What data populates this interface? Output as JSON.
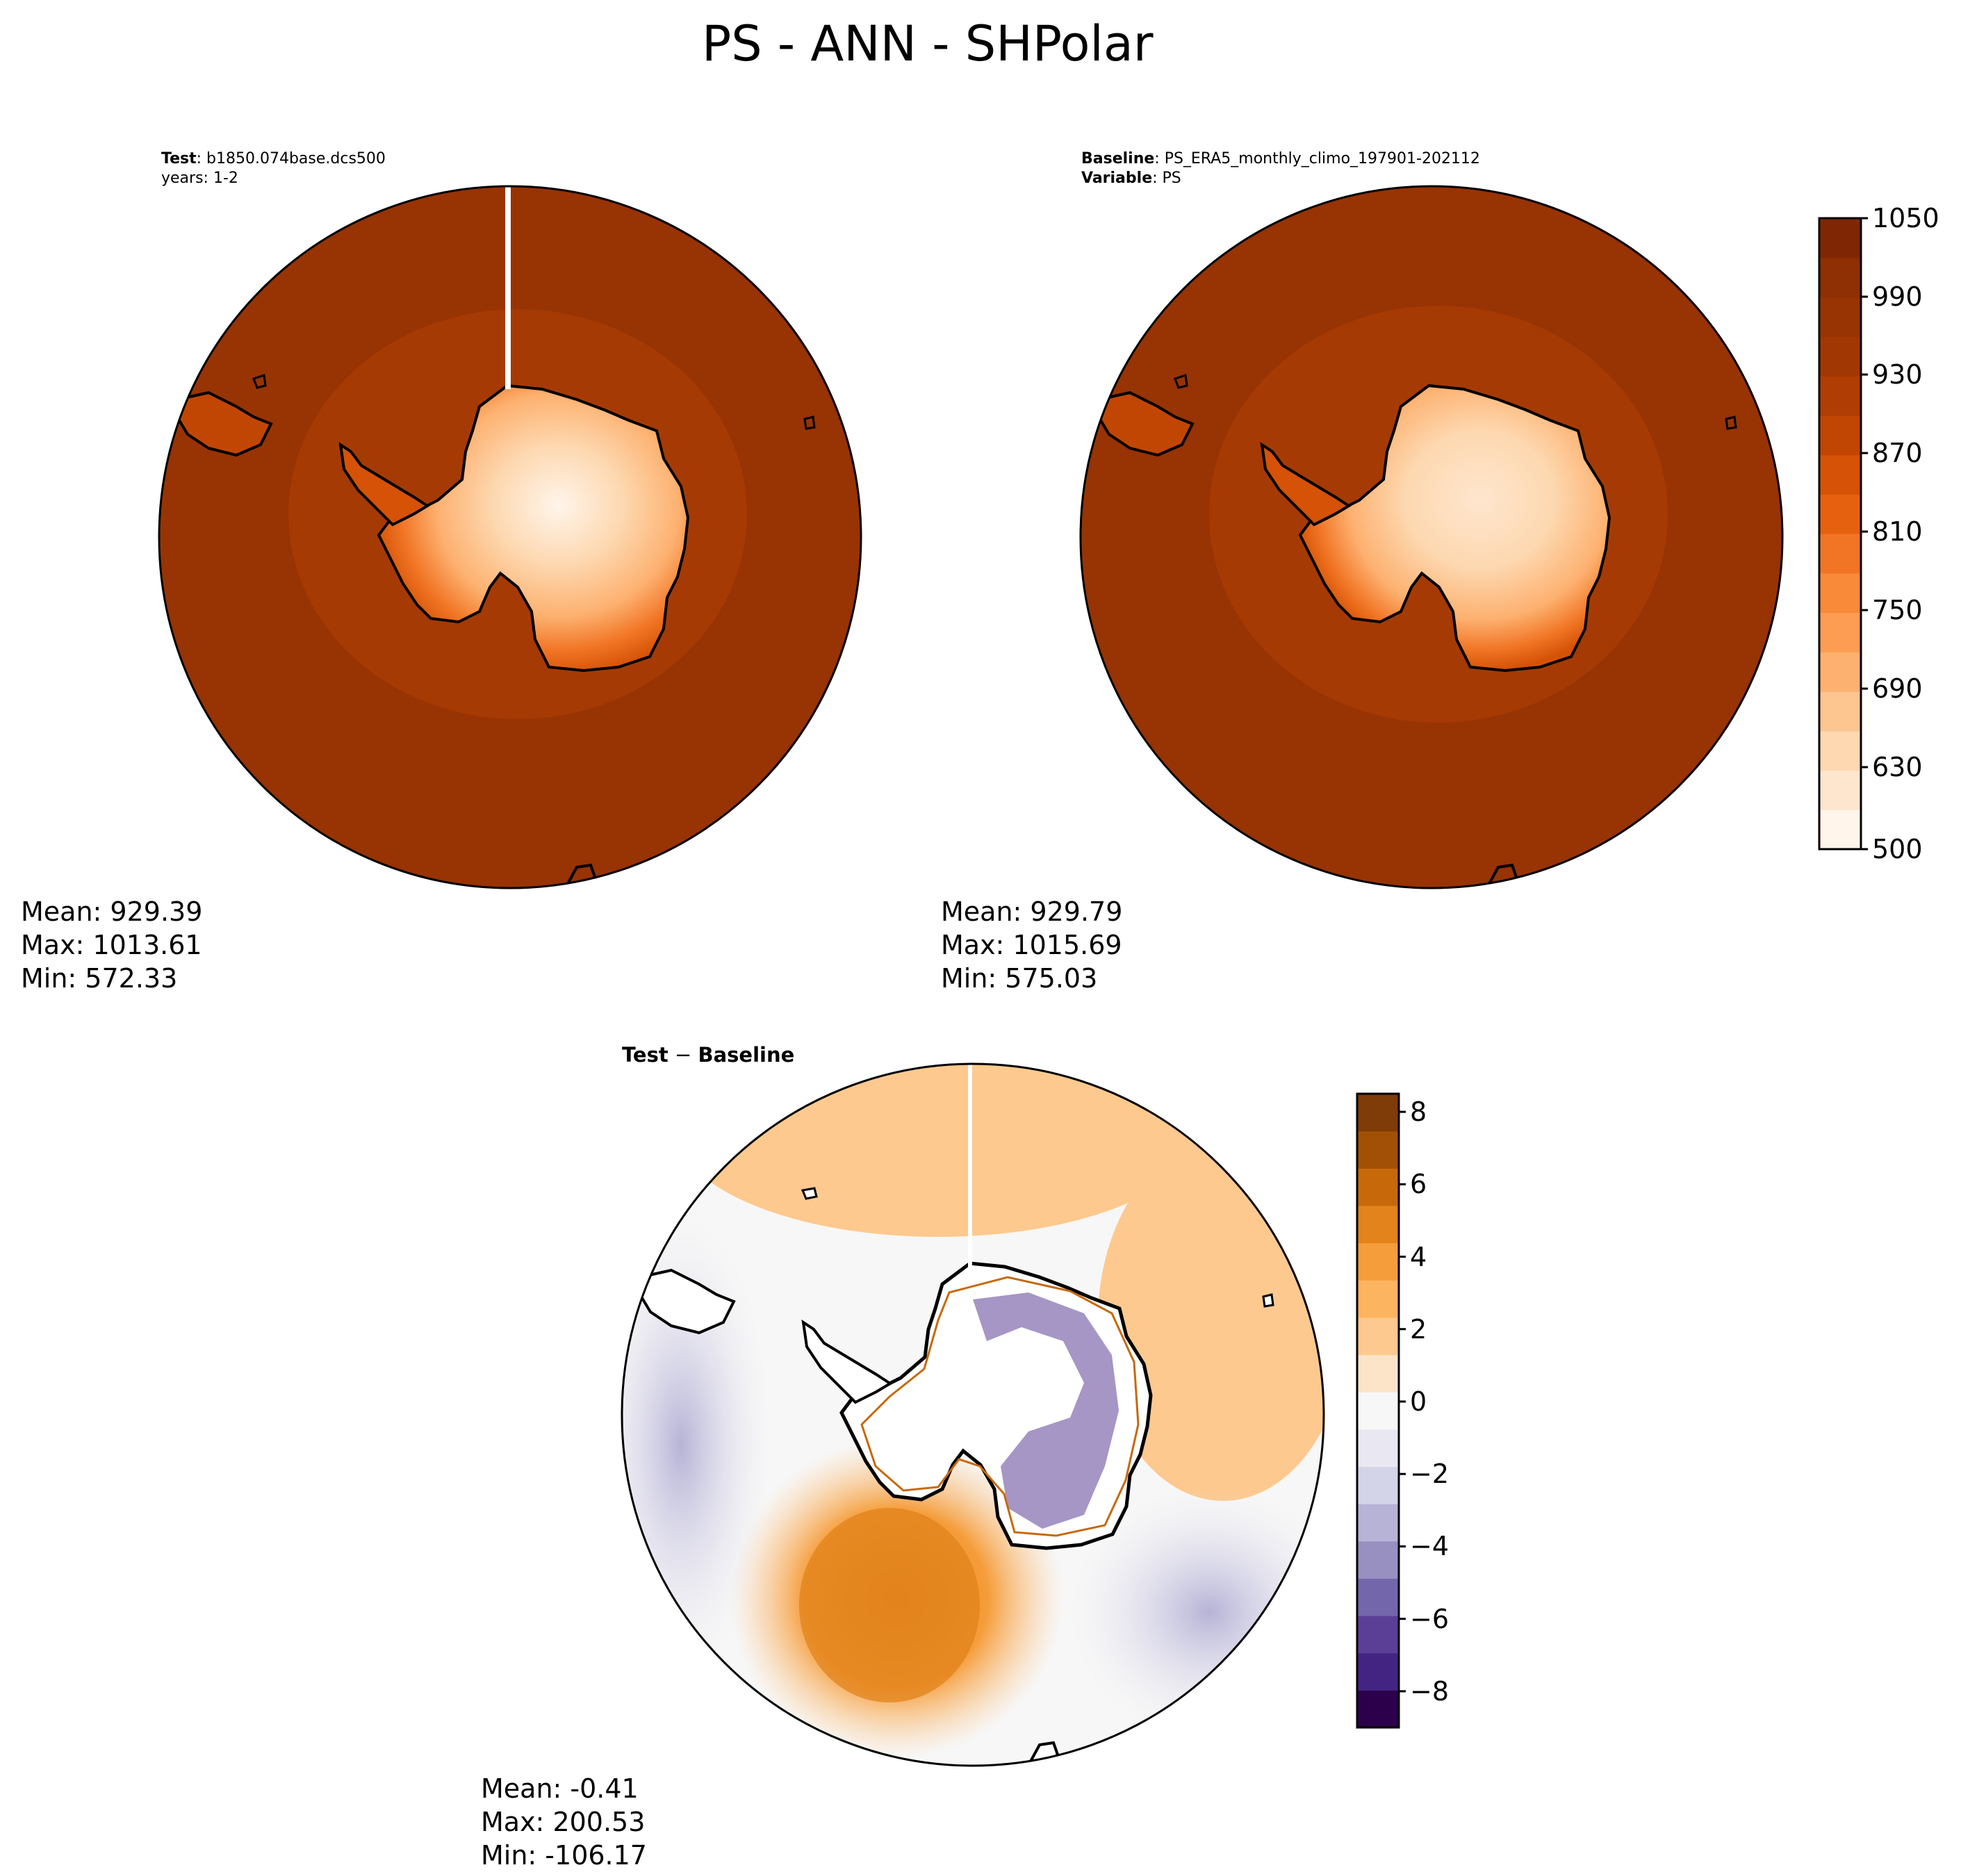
{
  "figure_title": "PS - ANN - SHPolar",
  "panels": {
    "test": {
      "label_bold": "Test",
      "label_text": "b1850.074base.dcs500",
      "line2": "years: 1-2",
      "stats": {
        "mean": "Mean: 929.39",
        "max": "Max: 1013.61",
        "min": "Min: 572.33"
      }
    },
    "baseline": {
      "label_bold": "Baseline",
      "label_text": "PS_ERA5_monthly_climo_197901-202112",
      "line2_bold": "Variable",
      "line2_text": "PS",
      "stats": {
        "mean": "Mean: 929.79",
        "max": "Max: 1015.69",
        "min": "Min: 575.03"
      }
    },
    "difference": {
      "title_bold_a": "Test",
      "title_sep": " − ",
      "title_bold_b": "Baseline",
      "stats": {
        "mean": "Mean: -0.41",
        "max": "Max: 200.53",
        "min": "Min: -106.17"
      }
    }
  },
  "colorbars": {
    "ps": {
      "ticks": [
        "1050",
        "990",
        "930",
        "870",
        "810",
        "750",
        "690",
        "630",
        "500"
      ],
      "colors": [
        "#fff5eb",
        "#fee6ce",
        "#fdd8b0",
        "#fdc590",
        "#fdb170",
        "#fd9d53",
        "#f88a3a",
        "#f17525",
        "#e6610f",
        "#d55206",
        "#c24603",
        "#b03d03",
        "#a13703",
        "#983303",
        "#8e2f04",
        "#7f2704"
      ]
    },
    "diff": {
      "ticks": [
        "8",
        "6",
        "4",
        "2",
        "0",
        "−2",
        "−4",
        "−6",
        "−8"
      ],
      "colors": [
        "#2d004b",
        "#432482",
        "#5b3f96",
        "#7466ab",
        "#9790c0",
        "#b6b3d6",
        "#d4d4e8",
        "#e9e8f2",
        "#f7f7f7",
        "#fbe4c8",
        "#fdc98e",
        "#fdb460",
        "#f59d3a",
        "#e2831b",
        "#c7690b",
        "#a25006",
        "#7f3b08"
      ]
    }
  },
  "colors": {
    "ocean_ps": "#983303",
    "ocean_ps_inner": "#a63a04",
    "diff_positive": "#f2a650",
    "diff_negative": "#d3d3e7",
    "coastline": "#000000"
  }
}
